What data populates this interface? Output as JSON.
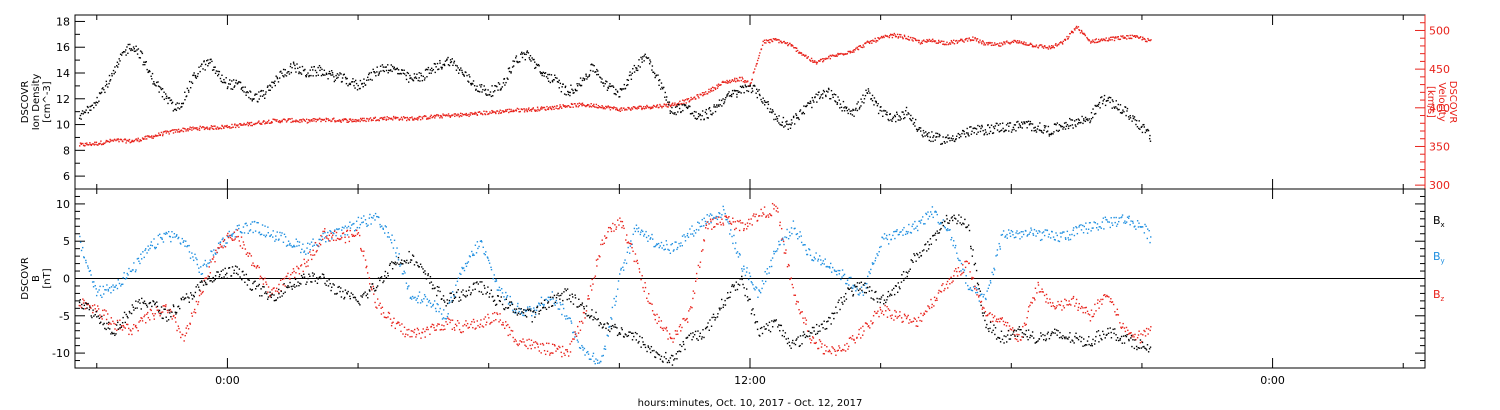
{
  "colors": {
    "axis": "#000000",
    "black_series": "#000000",
    "red_series": "#e8231c",
    "blue_series": "#1f8fe0"
  },
  "xlabel": "hours:minutes, Oct. 10, 2017 - Oct. 12, 2017",
  "chart_data": [
    {
      "type": "scatter",
      "panel": "top",
      "title": "",
      "xlabel": "hours:minutes, Oct. 10, 2017 - Oct. 12, 2017",
      "x_unit": "hours since Oct. 10, 2017 0:00",
      "xlim": [
        -3.5,
        27.5
      ],
      "x_ticks": [
        0,
        12,
        24
      ],
      "x_tick_labels": [
        "0:00",
        "12:00",
        "0:00"
      ],
      "ylabel_left": [
        "DSCOVR",
        "Ion Density",
        "[cm^-3]"
      ],
      "ylabel_right": [
        "DSCOVR",
        "Velocity",
        "[km/s]"
      ],
      "ylim_left": [
        5,
        18.5
      ],
      "ylim_right": [
        295,
        520
      ],
      "yticks_left": [
        6,
        8,
        10,
        12,
        14,
        16,
        18
      ],
      "yticks_right": [
        300,
        350,
        400,
        450,
        500
      ],
      "grid": false,
      "series": [
        {
          "axis": "left",
          "color": "#000000",
          "x": [
            -3.4,
            -3.0,
            -2.6,
            -2.4,
            -2.2,
            -2.0,
            -1.8,
            -1.6,
            -1.4,
            -1.2,
            -1.0,
            -0.8,
            -0.6,
            -0.4,
            -0.2,
            0.0,
            0.3,
            0.6,
            0.9,
            1.2,
            1.5,
            1.8,
            2.1,
            2.4,
            2.7,
            3.0,
            3.3,
            3.6,
            3.9,
            4.2,
            4.5,
            4.8,
            5.1,
            5.4,
            5.7,
            6.0,
            6.3,
            6.6,
            6.9,
            7.2,
            7.5,
            7.8,
            8.1,
            8.4,
            8.7,
            9.0,
            9.3,
            9.6,
            9.9,
            10.2,
            10.5,
            10.8,
            11.1,
            11.4,
            11.7,
            12.0,
            12.3,
            12.6,
            12.9,
            13.2,
            13.5,
            13.8,
            14.1,
            14.4,
            14.7,
            15.0,
            15.3,
            15.6,
            15.9,
            16.2,
            16.5,
            16.8,
            17.1,
            17.4,
            17.7,
            18.0,
            18.3,
            18.6,
            18.9,
            19.2,
            19.5,
            19.8,
            20.1,
            20.4,
            20.7,
            21.0,
            21.2
          ],
          "y": [
            10.5,
            12.0,
            14.0,
            15.5,
            16.2,
            15.5,
            14.0,
            13.0,
            12.0,
            11.2,
            12.0,
            13.5,
            14.5,
            14.8,
            13.8,
            13.2,
            13.0,
            12.0,
            12.5,
            13.8,
            14.5,
            14.0,
            14.2,
            13.8,
            13.5,
            13.0,
            13.8,
            14.5,
            14.2,
            13.5,
            13.8,
            14.5,
            15.0,
            14.0,
            13.0,
            12.5,
            13.0,
            15.0,
            15.5,
            14.0,
            13.5,
            12.5,
            13.2,
            14.5,
            13.0,
            12.5,
            14.0,
            15.5,
            13.5,
            11.0,
            11.5,
            10.5,
            11.0,
            12.0,
            12.5,
            13.0,
            12.0,
            10.5,
            10.0,
            11.0,
            12.0,
            12.5,
            11.5,
            11.0,
            12.5,
            11.0,
            10.5,
            11.0,
            9.5,
            9.0,
            8.8,
            9.2,
            9.5,
            9.6,
            9.8,
            9.8,
            10.0,
            9.8,
            9.5,
            10.0,
            10.2,
            10.5,
            12.0,
            11.5,
            10.8,
            9.8,
            9.0
          ]
        },
        {
          "axis": "right",
          "color": "#e8231c",
          "x": [
            -3.4,
            -3.0,
            -2.6,
            -2.2,
            -1.8,
            -1.4,
            -1.0,
            -0.6,
            -0.2,
            0.2,
            0.6,
            1.0,
            1.4,
            1.8,
            2.2,
            2.6,
            3.0,
            3.4,
            3.8,
            4.2,
            4.6,
            5.0,
            5.4,
            5.8,
            6.2,
            6.6,
            7.0,
            7.4,
            7.8,
            8.2,
            8.6,
            9.0,
            9.4,
            9.8,
            10.2,
            10.6,
            11.0,
            11.4,
            11.8,
            12.0,
            12.3,
            12.6,
            12.9,
            13.2,
            13.5,
            13.8,
            14.1,
            14.4,
            14.7,
            15.0,
            15.3,
            15.6,
            15.9,
            16.2,
            16.5,
            16.8,
            17.1,
            17.4,
            17.7,
            18.0,
            18.3,
            18.6,
            18.9,
            19.2,
            19.5,
            19.8,
            20.1,
            20.4,
            20.7,
            21.0,
            21.2
          ],
          "y": [
            352,
            354,
            358,
            357,
            362,
            368,
            372,
            374,
            375,
            377,
            380,
            383,
            384,
            383,
            385,
            384,
            384,
            386,
            387,
            386,
            388,
            390,
            391,
            393,
            395,
            397,
            398,
            400,
            403,
            404,
            402,
            398,
            400,
            402,
            404,
            410,
            420,
            433,
            438,
            430,
            485,
            488,
            482,
            470,
            458,
            465,
            470,
            475,
            484,
            490,
            494,
            491,
            485,
            487,
            484,
            486,
            490,
            483,
            481,
            486,
            484,
            480,
            478,
            485,
            505,
            486,
            488,
            490,
            492,
            490,
            486
          ]
        }
      ]
    },
    {
      "type": "scatter",
      "panel": "bottom",
      "title": "",
      "xlabel": "hours:minutes, Oct. 10, 2017 - Oct. 12, 2017",
      "x_unit": "hours since Oct. 10, 2017 0:00",
      "xlim": [
        -3.5,
        27.5
      ],
      "x_ticks": [
        0,
        12,
        24
      ],
      "x_tick_labels": [
        "0:00",
        "12:00",
        "0:00"
      ],
      "ylabel_left": [
        "DSCOVR",
        "B",
        "[nT]"
      ],
      "ylim": [
        -12,
        12
      ],
      "yticks": [
        -10,
        -5,
        0,
        5,
        10
      ],
      "zero_line": true,
      "grid": false,
      "legend_position": "right",
      "series": [
        {
          "name": "Bx",
          "label_main": "B",
          "label_sub": "x",
          "color": "#000000",
          "x": [
            -3.4,
            -3.0,
            -2.6,
            -2.2,
            -1.8,
            -1.4,
            -1.0,
            -0.6,
            -0.2,
            0.2,
            0.6,
            1.0,
            1.4,
            1.8,
            2.2,
            2.6,
            3.0,
            3.4,
            3.8,
            4.2,
            4.6,
            5.0,
            5.4,
            5.8,
            6.2,
            6.6,
            7.0,
            7.4,
            7.8,
            8.2,
            8.6,
            9.0,
            9.4,
            9.8,
            10.2,
            10.6,
            11.0,
            11.4,
            11.8,
            12.2,
            12.6,
            13.0,
            13.4,
            13.8,
            14.2,
            14.6,
            15.0,
            15.4,
            15.8,
            16.2,
            16.6,
            17.0,
            17.4,
            17.8,
            18.2,
            18.6,
            19.0,
            19.4,
            19.8,
            20.2,
            20.6,
            21.0,
            21.2
          ],
          "y": [
            -3.0,
            -5.0,
            -7.0,
            -4.0,
            -3.0,
            -5.0,
            -3.0,
            -1.0,
            0.5,
            1.0,
            -1.0,
            -2.5,
            -1.0,
            0.0,
            0.0,
            -2.0,
            -3.0,
            -1.0,
            2.0,
            3.0,
            0.0,
            -3.0,
            -2.0,
            -1.0,
            -3.0,
            -4.0,
            -5.0,
            -3.0,
            -2.0,
            -4.0,
            -6.0,
            -7.0,
            -8.0,
            -10.0,
            -11.0,
            -8.0,
            -7.0,
            -3.0,
            0.0,
            -7.0,
            -6.0,
            -9.0,
            -7.0,
            -6.0,
            -2.0,
            -1.0,
            -3.0,
            -1.0,
            3.0,
            5.0,
            8.5,
            7.0,
            -6.0,
            -8.0,
            -7.0,
            -8.0,
            -7.5,
            -8.0,
            -8.5,
            -7.0,
            -8.0,
            -9.0,
            -10.0
          ]
        },
        {
          "name": "By",
          "label_main": "B",
          "label_sub": "y",
          "color": "#1f8fe0",
          "x": [
            -3.4,
            -3.0,
            -2.6,
            -2.2,
            -1.8,
            -1.4,
            -1.0,
            -0.6,
            -0.2,
            0.2,
            0.6,
            1.0,
            1.4,
            1.8,
            2.2,
            2.6,
            3.0,
            3.4,
            3.8,
            4.2,
            4.6,
            5.0,
            5.4,
            5.8,
            6.2,
            6.6,
            7.0,
            7.4,
            7.8,
            8.2,
            8.6,
            9.0,
            9.4,
            9.8,
            10.2,
            10.6,
            11.0,
            11.4,
            11.8,
            12.2,
            12.6,
            13.0,
            13.4,
            13.8,
            14.2,
            14.6,
            15.0,
            15.4,
            15.8,
            16.2,
            16.6,
            17.0,
            17.4,
            17.8,
            18.2,
            18.6,
            19.0,
            19.4,
            19.8,
            20.2,
            20.6,
            21.0,
            21.2
          ],
          "y": [
            5.0,
            -2.0,
            -1.0,
            1.0,
            4.0,
            6.0,
            5.0,
            1.0,
            4.5,
            6.5,
            7.0,
            6.0,
            5.0,
            4.0,
            5.5,
            6.0,
            7.5,
            8.0,
            5.0,
            -2.0,
            -3.0,
            -5.0,
            1.0,
            5.0,
            -1.0,
            -4.0,
            -4.5,
            -2.0,
            -5.0,
            -10.0,
            -11.0,
            0.0,
            7.0,
            5.0,
            4.0,
            6.0,
            8.0,
            9.0,
            2.0,
            -2.0,
            4.0,
            7.0,
            3.0,
            2.0,
            0.0,
            -2.0,
            5.0,
            6.0,
            7.0,
            9.0,
            6.0,
            -1.0,
            -3.0,
            6.0,
            6.0,
            6.0,
            5.5,
            6.0,
            7.0,
            7.5,
            8.0,
            7.0,
            5.5
          ]
        },
        {
          "name": "Bz",
          "label_main": "B",
          "label_sub": "z",
          "color": "#e8231c",
          "x": [
            -3.4,
            -3.0,
            -2.6,
            -2.2,
            -1.8,
            -1.4,
            -1.0,
            -0.6,
            -0.2,
            0.2,
            0.6,
            1.0,
            1.4,
            1.8,
            2.2,
            2.6,
            3.0,
            3.4,
            3.8,
            4.2,
            4.6,
            5.0,
            5.4,
            5.8,
            6.2,
            6.6,
            7.0,
            7.4,
            7.8,
            8.2,
            8.6,
            9.0,
            9.4,
            9.8,
            10.2,
            10.6,
            11.0,
            11.4,
            11.8,
            12.2,
            12.6,
            13.0,
            13.4,
            13.8,
            14.2,
            14.6,
            15.0,
            15.4,
            15.8,
            16.2,
            16.6,
            17.0,
            17.4,
            17.8,
            18.2,
            18.6,
            19.0,
            19.4,
            19.8,
            20.2,
            20.6,
            21.0,
            21.2
          ],
          "y": [
            -3.0,
            -4.0,
            -6.0,
            -7.0,
            -5.0,
            -4.0,
            -8.0,
            -2.0,
            4.5,
            6.0,
            2.0,
            -2.0,
            0.0,
            2.0,
            6.0,
            5.5,
            6.0,
            -3.0,
            -6.0,
            -7.5,
            -7.0,
            -6.0,
            -6.5,
            -6.0,
            -5.0,
            -8.0,
            -9.0,
            -9.5,
            -10.0,
            -5.0,
            5.0,
            8.0,
            2.0,
            -5.0,
            -8.0,
            -5.0,
            7.0,
            8.0,
            7.0,
            8.5,
            9.5,
            -2.0,
            -8.0,
            -10.0,
            -9.0,
            -7.0,
            -4.0,
            -5.0,
            -6.0,
            -3.0,
            0.0,
            2.0,
            -5.0,
            -6.0,
            -8.0,
            -1.0,
            -4.0,
            -3.0,
            -5.0,
            -2.0,
            -7.0,
            -8.0,
            -6.0
          ]
        }
      ]
    }
  ]
}
